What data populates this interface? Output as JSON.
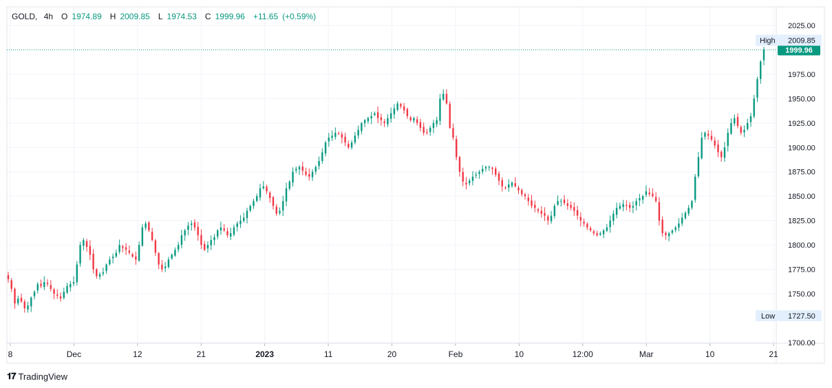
{
  "legend": {
    "symbol": "GOLD,",
    "interval": "4h",
    "open_label": "O",
    "open": "1974.89",
    "high_label": "H",
    "high": "2009.85",
    "low_label": "L",
    "low": "1974.53",
    "close_label": "C",
    "close": "1999.96",
    "change": "+11.65",
    "change_pct": "(+0.59%)"
  },
  "brand": {
    "logo": "𝟏𝟕",
    "name": "TradingView"
  },
  "colors": {
    "up": "#089981",
    "down": "#f23645",
    "grid": "#f0f3fa",
    "price_line": "#089981",
    "label_bg": "#e3effd"
  },
  "chart_data": {
    "type": "candlestick",
    "symbol": "GOLD",
    "interval": "4h",
    "y_range": [
      1700,
      2030
    ],
    "y_ticks": [
      "2025.00",
      "1975.00",
      "1950.00",
      "1925.00",
      "1900.00",
      "1875.00",
      "1850.00",
      "1825.00",
      "1800.00",
      "1775.00",
      "1750.00",
      "1700.00"
    ],
    "x_ticks": [
      {
        "label": "8",
        "bold": false
      },
      {
        "label": "Dec",
        "bold": false
      },
      {
        "label": "12",
        "bold": false
      },
      {
        "label": "21",
        "bold": false
      },
      {
        "label": "2023",
        "bold": true
      },
      {
        "label": "11",
        "bold": false
      },
      {
        "label": "20",
        "bold": false
      },
      {
        "label": "Feb",
        "bold": false
      },
      {
        "label": "10",
        "bold": false
      },
      {
        "label": "12:00",
        "bold": false
      },
      {
        "label": "Mar",
        "bold": false
      },
      {
        "label": "10",
        "bold": false
      },
      {
        "label": "21",
        "bold": false
      }
    ],
    "high_marker": {
      "label": "High",
      "value": "2009.85"
    },
    "low_marker": {
      "label": "Low",
      "value": "1727.50"
    },
    "last_price": "1999.96",
    "close_path": [
      1765,
      1755,
      1740,
      1745,
      1742,
      1735,
      1738,
      1746,
      1752,
      1760,
      1758,
      1762,
      1760,
      1755,
      1750,
      1748,
      1745,
      1752,
      1758,
      1760,
      1762,
      1780,
      1800,
      1805,
      1798,
      1790,
      1775,
      1768,
      1770,
      1772,
      1780,
      1785,
      1788,
      1792,
      1800,
      1797,
      1795,
      1792,
      1788,
      1785,
      1800,
      1818,
      1822,
      1815,
      1805,
      1792,
      1780,
      1775,
      1778,
      1785,
      1790,
      1795,
      1800,
      1810,
      1815,
      1820,
      1822,
      1818,
      1810,
      1800,
      1795,
      1800,
      1805,
      1808,
      1815,
      1818,
      1815,
      1810,
      1812,
      1818,
      1822,
      1825,
      1828,
      1835,
      1840,
      1845,
      1850,
      1858,
      1860,
      1855,
      1848,
      1840,
      1832,
      1835,
      1845,
      1858,
      1865,
      1875,
      1878,
      1880,
      1876,
      1872,
      1870,
      1875,
      1880,
      1886,
      1895,
      1905,
      1910,
      1912,
      1915,
      1914,
      1910,
      1905,
      1900,
      1905,
      1912,
      1918,
      1925,
      1928,
      1930,
      1932,
      1935,
      1930,
      1928,
      1925,
      1930,
      1935,
      1940,
      1945,
      1942,
      1938,
      1932,
      1928,
      1930,
      1925,
      1920,
      1915,
      1915,
      1920,
      1925,
      1928,
      1950,
      1955,
      1945,
      1920,
      1910,
      1890,
      1875,
      1865,
      1862,
      1866,
      1870,
      1872,
      1875,
      1878,
      1880,
      1880,
      1878,
      1872,
      1866,
      1860,
      1858,
      1862,
      1864,
      1860,
      1856,
      1852,
      1850,
      1845,
      1840,
      1838,
      1835,
      1832,
      1830,
      1825,
      1830,
      1840,
      1845,
      1845,
      1843,
      1840,
      1838,
      1835,
      1830,
      1825,
      1822,
      1818,
      1815,
      1812,
      1810,
      1812,
      1815,
      1818,
      1825,
      1832,
      1838,
      1840,
      1842,
      1840,
      1838,
      1840,
      1845,
      1848,
      1850,
      1855,
      1852,
      1850,
      1845,
      1825,
      1812,
      1810,
      1812,
      1815,
      1818,
      1822,
      1828,
      1833,
      1838,
      1845,
      1870,
      1890,
      1910,
      1915,
      1912,
      1908,
      1902,
      1895,
      1890,
      1900,
      1915,
      1925,
      1930,
      1922,
      1915,
      1918,
      1925,
      1932,
      1950,
      1970,
      1988,
      2000
    ]
  }
}
